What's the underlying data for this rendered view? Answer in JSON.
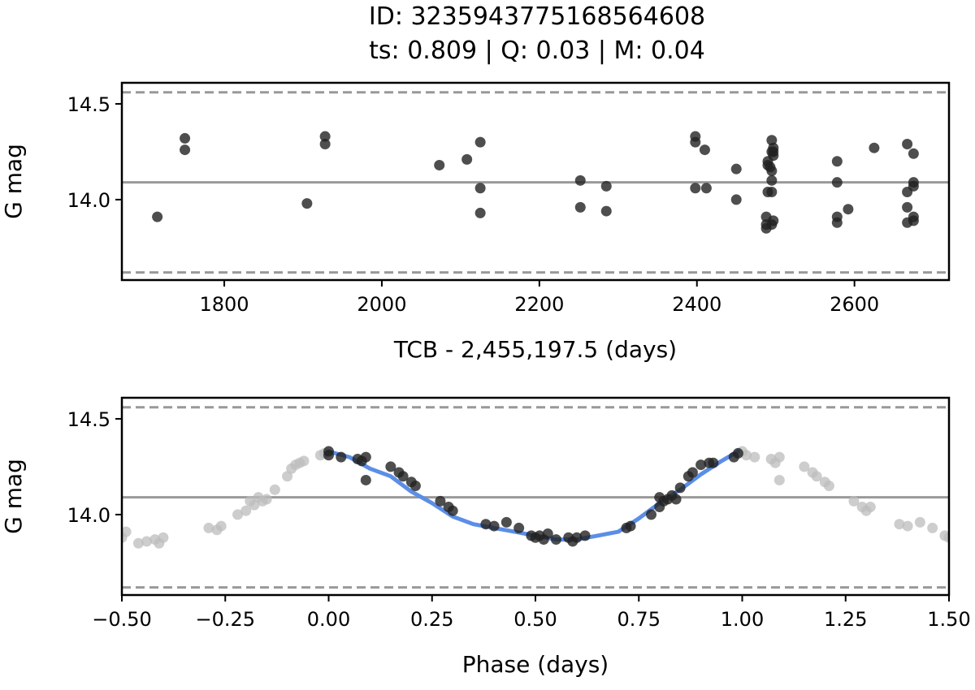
{
  "title": "ID: 3235943775168564608",
  "subtitle": "ts: 0.809 | Q: 0.03 | M: 0.04",
  "chart_data": [
    {
      "type": "scatter",
      "xlabel": "TCB - 2,455,197.5 (days)",
      "ylabel": "G mag",
      "xlim": [
        1670,
        2720
      ],
      "ylim": [
        14.61,
        13.58
      ],
      "y_inverted": true,
      "x_ticks": [
        "1800",
        "2000",
        "2200",
        "2400",
        "2600"
      ],
      "y_ticks": [
        "14.0",
        "14.5"
      ],
      "mean_line": 14.09,
      "dashed_bounds": [
        13.62,
        14.56
      ],
      "series": [
        {
          "points": [
            [
              1715,
              13.91
            ],
            [
              1750,
              14.26
            ],
            [
              1750,
              14.32
            ],
            [
              1905,
              13.98
            ],
            [
              1928,
              14.29
            ],
            [
              1928,
              14.33
            ],
            [
              2073,
              14.18
            ],
            [
              2108,
              14.21
            ],
            [
              2125,
              13.93
            ],
            [
              2125,
              14.06
            ],
            [
              2125,
              14.3
            ],
            [
              2252,
              13.96
            ],
            [
              2252,
              14.1
            ],
            [
              2285,
              13.94
            ],
            [
              2285,
              14.07
            ],
            [
              2398,
              14.06
            ],
            [
              2398,
              14.3
            ],
            [
              2398,
              14.33
            ],
            [
              2410,
              14.26
            ],
            [
              2412,
              14.06
            ],
            [
              2450,
              14.0
            ],
            [
              2450,
              14.16
            ],
            [
              2488,
              13.85
            ],
            [
              2488,
              13.87
            ],
            [
              2488,
              13.91
            ],
            [
              2490,
              14.04
            ],
            [
              2490,
              14.18
            ],
            [
              2490,
              14.2
            ],
            [
              2493,
              14.17
            ],
            [
              2495,
              13.87
            ],
            [
              2495,
              14.04
            ],
            [
              2495,
              14.1
            ],
            [
              2495,
              14.15
            ],
            [
              2495,
              14.25
            ],
            [
              2495,
              14.31
            ],
            [
              2497,
              14.27
            ],
            [
              2497,
              13.89
            ],
            [
              2497,
              14.25
            ],
            [
              2497,
              14.23
            ],
            [
              2578,
              13.88
            ],
            [
              2578,
              13.91
            ],
            [
              2578,
              14.09
            ],
            [
              2578,
              14.2
            ],
            [
              2592,
              13.95
            ],
            [
              2625,
              14.27
            ],
            [
              2667,
              13.88
            ],
            [
              2667,
              13.96
            ],
            [
              2667,
              14.04
            ],
            [
              2667,
              14.29
            ],
            [
              2675,
              13.89
            ],
            [
              2675,
              13.91
            ],
            [
              2675,
              14.07
            ],
            [
              2675,
              14.09
            ],
            [
              2675,
              14.24
            ]
          ]
        }
      ]
    },
    {
      "type": "scatter",
      "xlabel": "Phase (days)",
      "ylabel": "G mag",
      "xlim": [
        -0.5,
        1.5
      ],
      "ylim": [
        14.61,
        13.58
      ],
      "y_inverted": true,
      "x_ticks": [
        "−0.50",
        "−0.25",
        "0.00",
        "0.25",
        "0.50",
        "0.75",
        "1.00",
        "1.25",
        "1.50"
      ],
      "y_ticks": [
        "14.0",
        "14.5"
      ],
      "mean_line": 14.09,
      "dashed_bounds": [
        13.62,
        14.56
      ],
      "colors": {
        "model": "#5b8ee6",
        "points": "#222222",
        "ghost": "#bcbcbc"
      },
      "model_curve": [
        [
          0.0,
          14.33
        ],
        [
          0.05,
          14.3
        ],
        [
          0.1,
          14.24
        ],
        [
          0.15,
          14.2
        ],
        [
          0.2,
          14.12
        ],
        [
          0.25,
          14.06
        ],
        [
          0.3,
          13.99
        ],
        [
          0.35,
          13.95
        ],
        [
          0.4,
          13.93
        ],
        [
          0.45,
          13.91
        ],
        [
          0.5,
          13.89
        ],
        [
          0.55,
          13.87
        ],
        [
          0.6,
          13.87
        ],
        [
          0.65,
          13.89
        ],
        [
          0.7,
          13.91
        ],
        [
          0.75,
          13.98
        ],
        [
          0.8,
          14.06
        ],
        [
          0.85,
          14.13
        ],
        [
          0.9,
          14.21
        ],
        [
          0.95,
          14.28
        ],
        [
          0.99,
          14.33
        ]
      ],
      "points": [
        [
          0.0,
          14.33
        ],
        [
          0.0,
          14.31
        ],
        [
          0.03,
          14.3
        ],
        [
          0.07,
          14.29
        ],
        [
          0.08,
          14.28
        ],
        [
          0.09,
          14.3
        ],
        [
          0.09,
          14.18
        ],
        [
          0.15,
          14.25
        ],
        [
          0.17,
          14.22
        ],
        [
          0.18,
          14.2
        ],
        [
          0.2,
          14.17
        ],
        [
          0.21,
          14.15
        ],
        [
          0.27,
          14.07
        ],
        [
          0.29,
          14.04
        ],
        [
          0.3,
          14.02
        ],
        [
          0.38,
          13.95
        ],
        [
          0.4,
          13.94
        ],
        [
          0.43,
          13.96
        ],
        [
          0.46,
          13.93
        ],
        [
          0.49,
          13.89
        ],
        [
          0.5,
          13.88
        ],
        [
          0.51,
          13.89
        ],
        [
          0.52,
          13.87
        ],
        [
          0.53,
          13.9
        ],
        [
          0.55,
          13.87
        ],
        [
          0.58,
          13.88
        ],
        [
          0.59,
          13.86
        ],
        [
          0.6,
          13.88
        ],
        [
          0.62,
          13.89
        ],
        [
          0.72,
          13.93
        ],
        [
          0.73,
          13.94
        ],
        [
          0.78,
          14.0
        ],
        [
          0.8,
          14.04
        ],
        [
          0.8,
          14.09
        ],
        [
          0.81,
          14.07
        ],
        [
          0.82,
          14.08
        ],
        [
          0.83,
          14.1
        ],
        [
          0.84,
          14.08
        ],
        [
          0.85,
          14.14
        ],
        [
          0.87,
          14.2
        ],
        [
          0.88,
          14.22
        ],
        [
          0.9,
          14.26
        ],
        [
          0.92,
          14.27
        ],
        [
          0.93,
          14.27
        ],
        [
          0.98,
          14.3
        ],
        [
          0.99,
          14.32
        ]
      ],
      "ghost_points": [
        [
          -0.5,
          13.88
        ],
        [
          -0.49,
          13.91
        ],
        [
          -0.46,
          13.85
        ],
        [
          -0.44,
          13.86
        ],
        [
          -0.42,
          13.87
        ],
        [
          -0.41,
          13.85
        ],
        [
          -0.4,
          13.88
        ],
        [
          -0.29,
          13.93
        ],
        [
          -0.27,
          13.92
        ],
        [
          -0.26,
          13.94
        ],
        [
          -0.22,
          14.0
        ],
        [
          -0.2,
          14.02
        ],
        [
          -0.19,
          14.07
        ],
        [
          -0.18,
          14.05
        ],
        [
          -0.17,
          14.09
        ],
        [
          -0.16,
          14.07
        ],
        [
          -0.15,
          14.08
        ],
        [
          -0.13,
          14.13
        ],
        [
          -0.1,
          14.2
        ],
        [
          -0.09,
          14.24
        ],
        [
          -0.08,
          14.26
        ],
        [
          -0.07,
          14.27
        ],
        [
          -0.06,
          14.28
        ],
        [
          -0.02,
          14.31
        ],
        [
          -0.01,
          14.32
        ],
        [
          1.0,
          14.33
        ],
        [
          1.01,
          14.31
        ],
        [
          1.03,
          14.3
        ],
        [
          1.07,
          14.29
        ],
        [
          1.08,
          14.27
        ],
        [
          1.09,
          14.3
        ],
        [
          1.09,
          14.18
        ],
        [
          1.15,
          14.25
        ],
        [
          1.17,
          14.22
        ],
        [
          1.18,
          14.2
        ],
        [
          1.2,
          14.17
        ],
        [
          1.21,
          14.15
        ],
        [
          1.27,
          14.07
        ],
        [
          1.29,
          14.04
        ],
        [
          1.3,
          14.02
        ],
        [
          1.31,
          14.04
        ],
        [
          1.38,
          13.95
        ],
        [
          1.4,
          13.94
        ],
        [
          1.43,
          13.96
        ],
        [
          1.46,
          13.93
        ],
        [
          1.49,
          13.89
        ],
        [
          1.5,
          13.88
        ]
      ]
    }
  ]
}
